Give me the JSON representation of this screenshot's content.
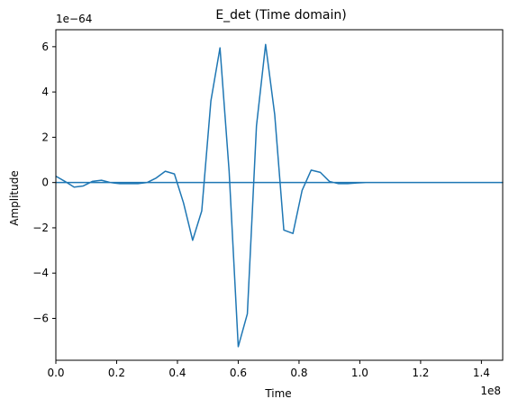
{
  "chart_data": {
    "type": "line",
    "title": "E_det (Time domain)",
    "xlabel": "Time",
    "ylabel": "Amplitude",
    "x_offset_label": "1e8",
    "y_offset_label": "1e−64",
    "xlim": [
      0,
      1.47
    ],
    "ylim": [
      -7.85,
      6.75
    ],
    "x_ticks": [
      0.0,
      0.2,
      0.4,
      0.6,
      0.8,
      1.0,
      1.2,
      1.4
    ],
    "x_tick_labels": [
      "0.0",
      "0.2",
      "0.4",
      "0.6",
      "0.8",
      "1.0",
      "1.2",
      "1.4"
    ],
    "y_ticks": [
      -6,
      -4,
      -2,
      0,
      2,
      4,
      6
    ],
    "y_tick_labels": [
      "−6",
      "−4",
      "−2",
      "0",
      "2",
      "4",
      "6"
    ],
    "grid": false,
    "color": "#1f77b4",
    "series": [
      {
        "x": [
          0.0,
          0.03,
          0.06,
          0.09,
          0.12,
          0.15,
          0.18,
          0.21,
          0.24,
          0.27,
          0.3,
          0.33,
          0.36,
          0.39,
          0.42,
          0.45,
          0.48,
          0.51,
          0.54,
          0.57,
          0.6,
          0.63,
          0.66,
          0.69,
          0.72,
          0.75,
          0.78,
          0.81,
          0.84,
          0.87,
          0.9,
          0.93,
          0.96,
          0.99,
          1.02,
          1.05,
          1.08,
          1.11,
          1.14,
          1.17,
          1.2,
          1.23,
          1.26,
          1.29,
          1.32,
          1.35,
          1.38,
          1.41,
          1.44,
          1.47,
          1.44,
          1.2,
          1.0,
          0.8,
          0.6,
          0.4,
          0.2,
          0.0
        ],
        "y": [
          0.28,
          0.05,
          -0.2,
          -0.15,
          0.05,
          0.1,
          0.0,
          -0.05,
          -0.05,
          -0.05,
          0.0,
          0.2,
          0.5,
          0.38,
          -0.9,
          -2.55,
          -1.25,
          3.6,
          5.95,
          0.5,
          -7.25,
          -5.8,
          2.5,
          6.1,
          3.0,
          -2.1,
          -2.25,
          -0.35,
          0.55,
          0.45,
          0.05,
          -0.05,
          -0.05,
          -0.02,
          0.0,
          0.0,
          0.0,
          0.0,
          0.0,
          0.0,
          0.0,
          0.0,
          0.0,
          0.0,
          0.0,
          0.0,
          0.0,
          0.0,
          0.0,
          0.0,
          0.0,
          0.0,
          0.0,
          0.0,
          0.0,
          0.0,
          0.0,
          0.0
        ]
      }
    ]
  }
}
